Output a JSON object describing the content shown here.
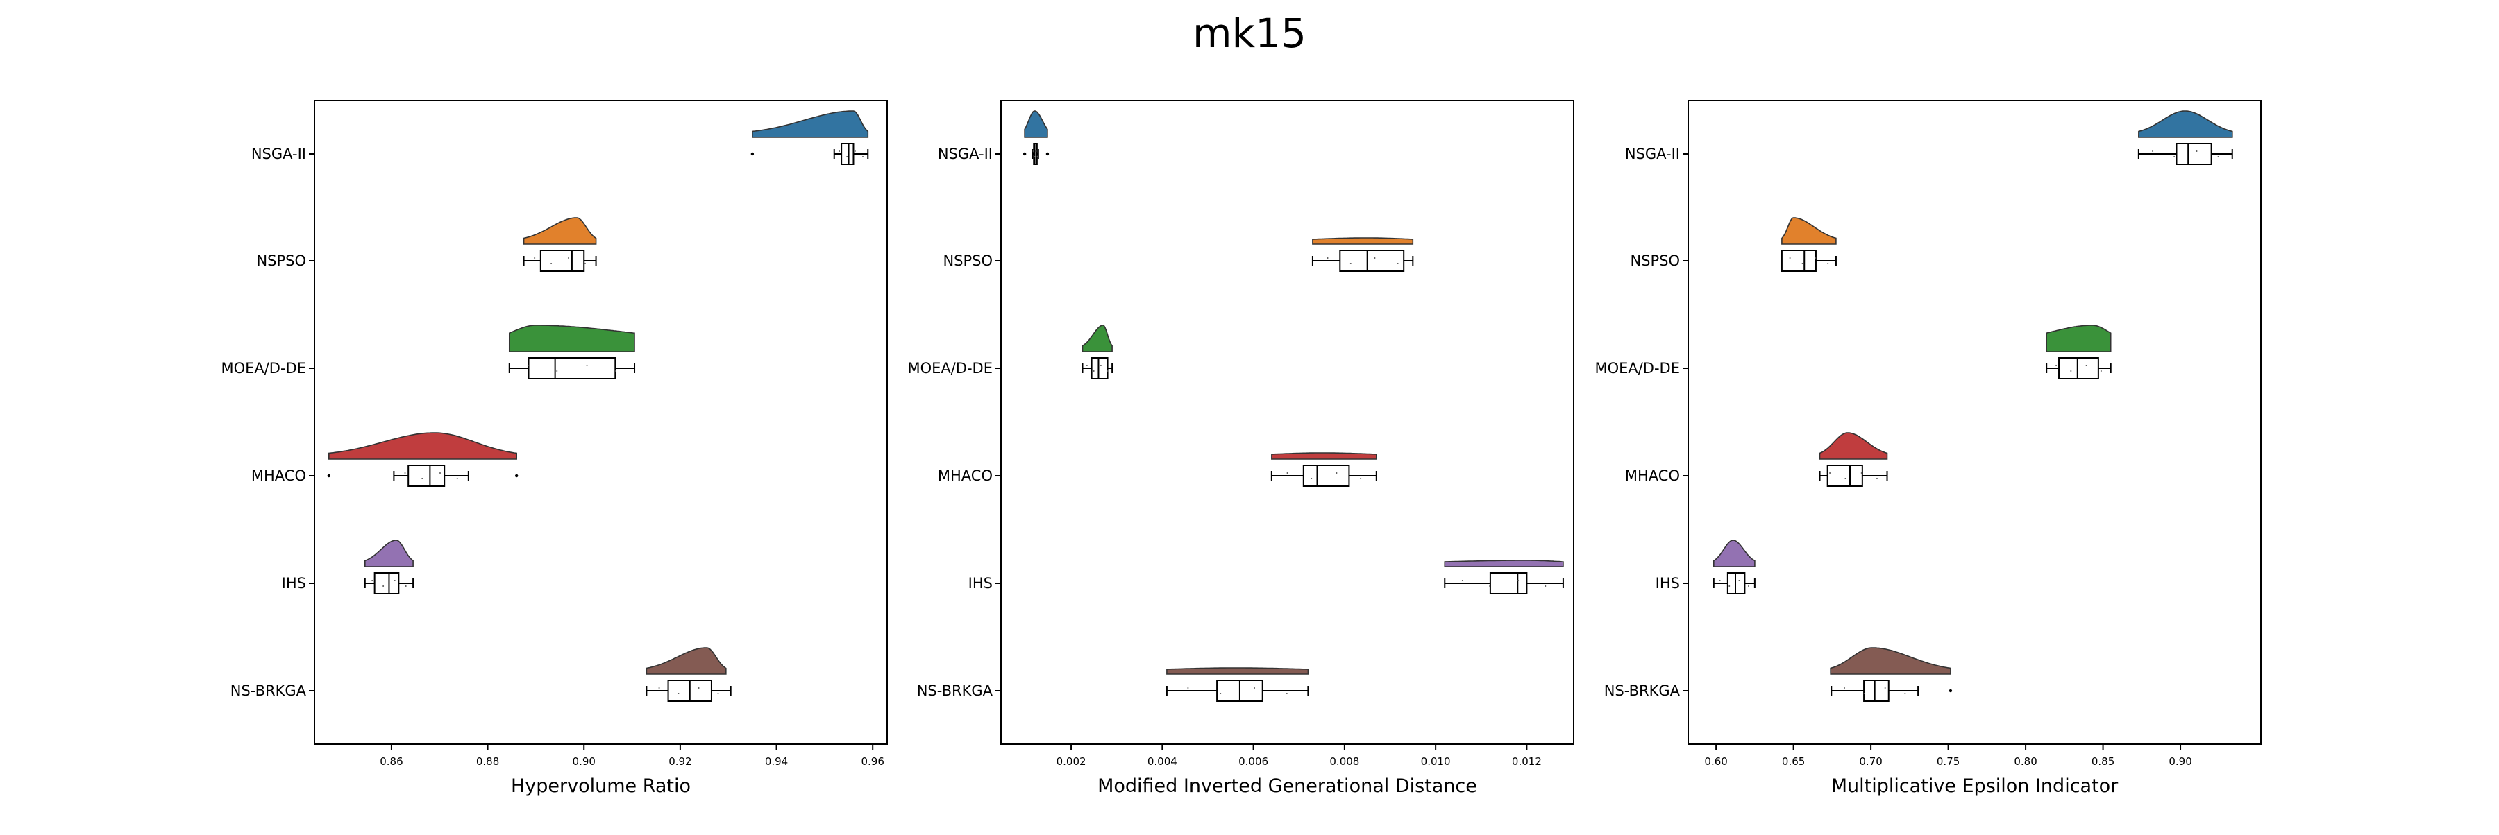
{
  "figure": {
    "title": "mk15"
  },
  "categories": [
    "NSGA-II",
    "NSPSO",
    "MOEA/D-DE",
    "MHACO",
    "IHS",
    "NS-BRKGA"
  ],
  "colors": [
    "#3274a1",
    "#e1812c",
    "#3a923a",
    "#c03d3e",
    "#9372b2",
    "#845b53"
  ],
  "chart_data": [
    {
      "type": "raincloud",
      "xlabel": "Hypervolume Ratio",
      "xlim": [
        0.844,
        0.963
      ],
      "xticks": [
        0.86,
        0.88,
        0.9,
        0.92,
        0.94,
        0.96
      ],
      "xtick_labels": [
        "0.86",
        "0.88",
        "0.90",
        "0.92",
        "0.94",
        "0.96"
      ],
      "series": [
        {
          "name": "NSGA-II",
          "whisker_low": 0.952,
          "q1": 0.9535,
          "median": 0.955,
          "q3": 0.956,
          "whisker_high": 0.959,
          "outliers": [
            0.935
          ],
          "kde_range": [
            0.935,
            0.959
          ],
          "mode": 0.956,
          "kde_shape": "left-skewed"
        },
        {
          "name": "NSPSO",
          "whisker_low": 0.8875,
          "q1": 0.891,
          "median": 0.8975,
          "q3": 0.9,
          "whisker_high": 0.9025,
          "outliers": [],
          "kde_range": [
            0.8875,
            0.9025
          ],
          "mode": 0.8985,
          "kde_shape": "normal"
        },
        {
          "name": "MOEA/D-DE",
          "whisker_low": 0.8845,
          "q1": 0.8885,
          "median": 0.894,
          "q3": 0.9065,
          "whisker_high": 0.9105,
          "outliers": [],
          "kde_range": [
            0.8845,
            0.9105
          ],
          "mode": 0.89,
          "kde_shape": "flat"
        },
        {
          "name": "MHACO",
          "whisker_low": 0.8605,
          "q1": 0.8635,
          "median": 0.868,
          "q3": 0.871,
          "whisker_high": 0.876,
          "outliers": [
            0.847,
            0.886
          ],
          "kde_range": [
            0.847,
            0.886
          ],
          "mode": 0.869,
          "kde_shape": "normal"
        },
        {
          "name": "IHS",
          "whisker_low": 0.8545,
          "q1": 0.8565,
          "median": 0.8595,
          "q3": 0.8615,
          "whisker_high": 0.8645,
          "outliers": [],
          "kde_range": [
            0.8545,
            0.8645
          ],
          "mode": 0.861,
          "kde_shape": "left-skewed"
        },
        {
          "name": "NS-BRKGA",
          "whisker_low": 0.913,
          "q1": 0.9175,
          "median": 0.922,
          "q3": 0.9265,
          "whisker_high": 0.9305,
          "outliers": [],
          "kde_range": [
            0.913,
            0.9295
          ],
          "mode": 0.9255,
          "kde_shape": "left-skewed"
        }
      ]
    },
    {
      "type": "raincloud",
      "xlabel": "Modified Inverted Generational Distance",
      "xlim": [
        0.00046,
        0.01303
      ],
      "xticks": [
        0.002,
        0.004,
        0.006,
        0.008,
        0.01,
        0.012
      ],
      "xtick_labels": [
        "0.002",
        "0.004",
        "0.006",
        "0.008",
        "0.010",
        "0.012"
      ],
      "series": [
        {
          "name": "NSGA-II",
          "whisker_low": 0.00115,
          "q1": 0.00118,
          "median": 0.0012,
          "q3": 0.00125,
          "whisker_high": 0.00128,
          "outliers": [
            0.00098,
            0.00148
          ],
          "kde_range": [
            0.00098,
            0.00148
          ],
          "mode": 0.0012,
          "kde_shape": "narrow"
        },
        {
          "name": "NSPSO",
          "whisker_low": 0.0073,
          "q1": 0.0079,
          "median": 0.0085,
          "q3": 0.0093,
          "whisker_high": 0.0095,
          "outliers": [],
          "kde_range": [
            0.0073,
            0.0095
          ],
          "mode": 0.0085,
          "kde_shape": "thin"
        },
        {
          "name": "MOEA/D-DE",
          "whisker_low": 0.00225,
          "q1": 0.00245,
          "median": 0.0026,
          "q3": 0.0028,
          "whisker_high": 0.0029,
          "outliers": [],
          "kde_range": [
            0.00225,
            0.0029
          ],
          "mode": 0.0027,
          "kde_shape": "left-skewed"
        },
        {
          "name": "MHACO",
          "whisker_low": 0.0064,
          "q1": 0.0071,
          "median": 0.0074,
          "q3": 0.0081,
          "whisker_high": 0.0087,
          "outliers": [],
          "kde_range": [
            0.0064,
            0.0087
          ],
          "mode": 0.0075,
          "kde_shape": "thin"
        },
        {
          "name": "IHS",
          "whisker_low": 0.0102,
          "q1": 0.0112,
          "median": 0.0118,
          "q3": 0.012,
          "whisker_high": 0.0128,
          "outliers": [],
          "kde_range": [
            0.0102,
            0.0128
          ],
          "mode": 0.012,
          "kde_shape": "thin"
        },
        {
          "name": "NS-BRKGA",
          "whisker_low": 0.0041,
          "q1": 0.0052,
          "median": 0.0057,
          "q3": 0.0062,
          "whisker_high": 0.0072,
          "outliers": [],
          "kde_range": [
            0.0041,
            0.0072
          ],
          "mode": 0.0056,
          "kde_shape": "thin"
        }
      ]
    },
    {
      "type": "raincloud",
      "xlabel": "Multiplicative Epsilon Indicator",
      "xlim": [
        0.582,
        0.952
      ],
      "xticks": [
        0.6,
        0.65,
        0.7,
        0.75,
        0.8,
        0.85,
        0.9
      ],
      "xtick_labels": [
        "0.60",
        "0.65",
        "0.70",
        "0.75",
        "0.80",
        "0.85",
        "0.90"
      ],
      "series": [
        {
          "name": "NSGA-II",
          "whisker_low": 0.873,
          "q1": 0.8975,
          "median": 0.905,
          "q3": 0.92,
          "whisker_high": 0.9335,
          "outliers": [],
          "kde_range": [
            0.873,
            0.9335
          ],
          "mode": 0.903,
          "kde_shape": "normal"
        },
        {
          "name": "NSPSO",
          "whisker_low": 0.6425,
          "q1": 0.6425,
          "median": 0.657,
          "q3": 0.6645,
          "whisker_high": 0.6775,
          "outliers": [],
          "kde_range": [
            0.6425,
            0.6775
          ],
          "mode": 0.65,
          "kde_shape": "right-skewed"
        },
        {
          "name": "MOEA/D-DE",
          "whisker_low": 0.8135,
          "q1": 0.8215,
          "median": 0.8335,
          "q3": 0.847,
          "whisker_high": 0.855,
          "outliers": [],
          "kde_range": [
            0.8135,
            0.855
          ],
          "mode": 0.843,
          "kde_shape": "flat"
        },
        {
          "name": "MHACO",
          "whisker_low": 0.667,
          "q1": 0.672,
          "median": 0.6865,
          "q3": 0.6945,
          "whisker_high": 0.7105,
          "outliers": [],
          "kde_range": [
            0.667,
            0.7105
          ],
          "mode": 0.685,
          "kde_shape": "normal"
        },
        {
          "name": "IHS",
          "whisker_low": 0.5985,
          "q1": 0.6075,
          "median": 0.6125,
          "q3": 0.6185,
          "whisker_high": 0.625,
          "outliers": [],
          "kde_range": [
            0.5985,
            0.625
          ],
          "mode": 0.611,
          "kde_shape": "right-skewed"
        },
        {
          "name": "NS-BRKGA",
          "whisker_low": 0.6745,
          "q1": 0.6955,
          "median": 0.7025,
          "q3": 0.7115,
          "whisker_high": 0.7305,
          "outliers": [
            0.7515
          ],
          "kde_range": [
            0.674,
            0.7515
          ],
          "mode": 0.701,
          "kde_shape": "right-skewed"
        }
      ]
    }
  ]
}
